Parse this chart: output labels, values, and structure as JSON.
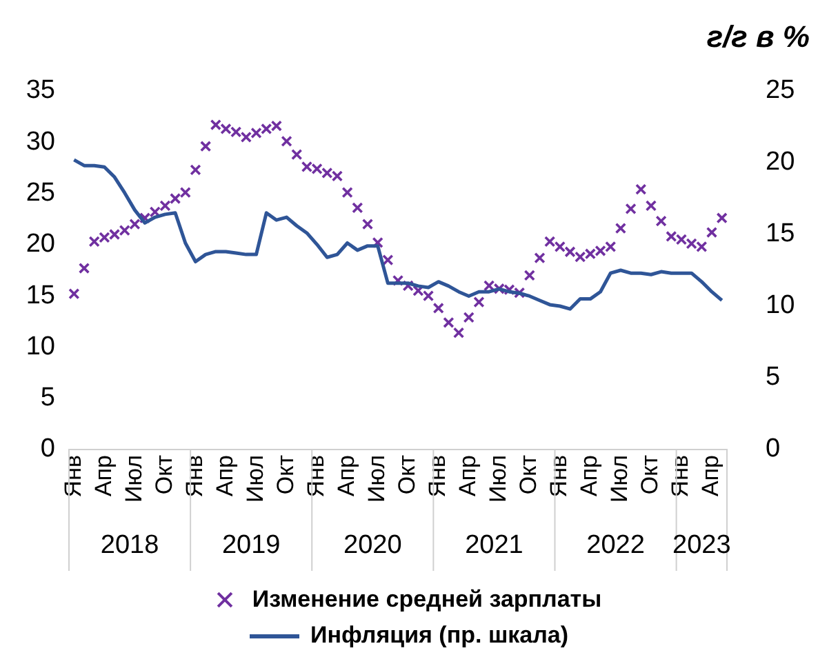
{
  "chart_data": {
    "type": "line",
    "y2label": "г/г в %",
    "categories": [
      "Янв",
      null,
      null,
      "Апр",
      null,
      null,
      "Июл",
      null,
      null,
      "Окт",
      null,
      null,
      "Янв",
      null,
      null,
      "Апр",
      null,
      null,
      "Июл",
      null,
      null,
      "Окт",
      null,
      null,
      "Янв",
      null,
      null,
      "Апр",
      null,
      null,
      "Июл",
      null,
      null,
      "Окт",
      null,
      null,
      "Янв",
      null,
      null,
      "Апр",
      null,
      null,
      "Июл",
      null,
      null,
      "Окт",
      null,
      null,
      "Янв",
      null,
      null,
      "Апр",
      null,
      null,
      "Июл",
      null,
      null,
      "Окт",
      null,
      null,
      "Янв",
      null,
      null,
      "Апр",
      null
    ],
    "annotations": [
      "2018",
      "2019",
      "2020",
      "2021",
      "2022",
      "2023"
    ],
    "series": [
      {
        "name": "Изменение средней зарплаты",
        "type": "scatter",
        "marker": "cross",
        "color": "#7030a0",
        "values": [
          15.2,
          17.7,
          20.3,
          20.7,
          21.0,
          21.4,
          22.0,
          22.6,
          23.2,
          23.8,
          24.5,
          25.1,
          27.3,
          29.6,
          31.7,
          31.3,
          31.0,
          30.5,
          30.9,
          31.3,
          31.6,
          30.1,
          28.8,
          27.6,
          27.4,
          27.0,
          26.7,
          25.1,
          23.6,
          22.0,
          20.2,
          18.5,
          16.5,
          16.0,
          15.5,
          15.0,
          13.8,
          12.4,
          11.4,
          12.9,
          14.4,
          16.0,
          15.7,
          15.6,
          15.3,
          17.0,
          18.7,
          20.3,
          19.8,
          19.3,
          18.8,
          19.1,
          19.4,
          19.8,
          21.6,
          23.5,
          25.4,
          23.8,
          22.3,
          20.8,
          20.5,
          20.1,
          19.8,
          21.2,
          22.6
        ]
      },
      {
        "name": "Инфляция (пр. шкала)",
        "axis": "y2",
        "marker": "none",
        "line_style": "solid",
        "color": "#2f5597",
        "values": [
          20.2,
          19.8,
          19.8,
          19.7,
          19.0,
          17.9,
          16.7,
          15.8,
          16.2,
          16.4,
          16.5,
          14.4,
          13.1,
          13.6,
          13.8,
          13.8,
          13.7,
          13.6,
          13.6,
          16.5,
          16.0,
          16.2,
          15.6,
          15.1,
          14.3,
          13.4,
          13.6,
          14.4,
          13.9,
          14.2,
          14.2,
          11.6,
          11.6,
          11.6,
          11.4,
          11.3,
          11.7,
          11.4,
          11.0,
          10.7,
          11.0,
          11.0,
          11.2,
          11.0,
          10.9,
          10.7,
          10.4,
          10.1,
          10.0,
          9.8,
          10.5,
          10.5,
          11.0,
          12.3,
          12.5,
          12.3,
          12.3,
          12.2,
          12.4,
          12.3,
          12.3,
          12.3,
          11.7,
          11.0,
          10.4
        ]
      }
    ],
    "ylim": [
      0,
      35
    ],
    "yticks": [
      0,
      5,
      10,
      15,
      20,
      25,
      30,
      35
    ],
    "y2lim": [
      0,
      25
    ],
    "y2ticks": [
      0,
      5,
      10,
      15,
      20,
      25
    ],
    "grid": false,
    "legend": "bottom"
  }
}
